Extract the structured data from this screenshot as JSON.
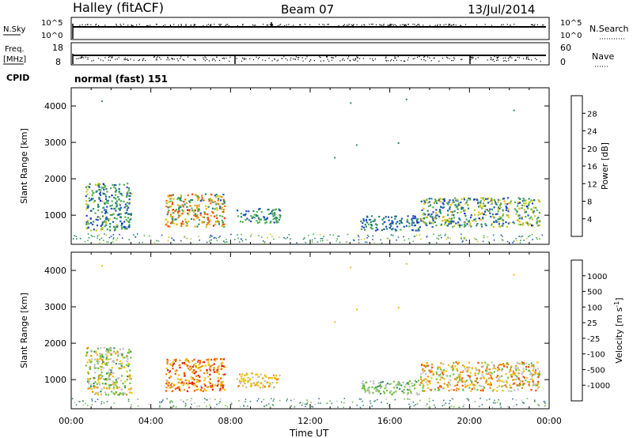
{
  "header": {
    "station": "Halley (fitACF)",
    "beam": "Beam 07",
    "date": "13/Jul/2014"
  },
  "strips": {
    "nsky_label": "N.Sky",
    "nsky_ticks": [
      "10^5",
      "10^0"
    ],
    "nsearch_label": "N.Search",
    "nsearch_ticks": [
      "10^5",
      "10^0"
    ],
    "freq_label_1": "Freq.",
    "freq_label_2": "[MHz]",
    "freq_ticks": [
      "18",
      "8"
    ],
    "nave_label": "Nave",
    "nave_ticks": [
      "60",
      "0"
    ],
    "cpid_label": "CPID",
    "cpid_value": "normal (fast) 151"
  },
  "chart_data": [
    {
      "type": "heatmap",
      "title": "",
      "xlabel": "",
      "ylabel": "Slant Range [km]",
      "x_ticks": [
        "00:00",
        "04:00",
        "08:00",
        "12:00",
        "16:00",
        "20:00",
        "00:00"
      ],
      "xlim_hours": [
        0,
        24
      ],
      "ylim_km": [
        200,
        4500
      ],
      "y_ticks": [
        "1000",
        "2000",
        "3000",
        "4000"
      ],
      "y_tick_values": [
        1000,
        2000,
        3000,
        4000
      ],
      "colorbar": {
        "label": "Power [dB]",
        "ticks": [
          "4",
          "8",
          "12",
          "16",
          "20",
          "24",
          "28"
        ],
        "colors": [
          "#1010e0",
          "#2050c0",
          "#2a8a6a",
          "#50b050",
          "#c8c820",
          "#f0b000",
          "#f07000",
          "#f04000",
          "#e01010"
        ]
      },
      "regions": [
        {
          "t": [
            0.7,
            3.0
          ],
          "r": [
            600,
            1900
          ],
          "level": [
            0.1,
            0.5
          ]
        },
        {
          "t": [
            4.7,
            7.7
          ],
          "r": [
            700,
            1600
          ],
          "level": [
            0.2,
            0.9
          ]
        },
        {
          "t": [
            8.3,
            10.5
          ],
          "r": [
            800,
            1200
          ],
          "level": [
            0.1,
            0.45
          ]
        },
        {
          "t": [
            14.5,
            17.5
          ],
          "r": [
            600,
            1000
          ],
          "level": [
            0.1,
            0.35
          ]
        },
        {
          "t": [
            17.5,
            23.5
          ],
          "r": [
            700,
            1500
          ],
          "level": [
            0.1,
            0.6
          ]
        }
      ]
    },
    {
      "type": "heatmap",
      "title": "",
      "xlabel": "Time UT",
      "ylabel": "Slant Range [km]",
      "x_ticks": [
        "00:00",
        "04:00",
        "08:00",
        "12:00",
        "16:00",
        "20:00",
        "00:00"
      ],
      "xlim_hours": [
        0,
        24
      ],
      "ylim_km": [
        200,
        4500
      ],
      "y_ticks": [
        "1000",
        "2000",
        "3000",
        "4000"
      ],
      "y_tick_values": [
        1000,
        2000,
        3000,
        4000
      ],
      "colorbar": {
        "label": "Velocity [m s^-1]",
        "ticks": [
          "1000",
          "500",
          "100",
          "25",
          "-25",
          "-100",
          "-500",
          "-1000"
        ],
        "colors": [
          "#2040c0",
          "#3070a0",
          "#3a9060",
          "#70c040",
          "#c0c0c0",
          "#f0c000",
          "#f09000",
          "#f05000",
          "#e01010"
        ]
      },
      "regions": [
        {
          "t": [
            0.7,
            3.0
          ],
          "r": [
            600,
            1900
          ],
          "level": [
            0.3,
            0.7
          ]
        },
        {
          "t": [
            4.7,
            7.7
          ],
          "r": [
            700,
            1600
          ],
          "level": [
            0.55,
            0.95
          ]
        },
        {
          "t": [
            8.3,
            10.5
          ],
          "r": [
            800,
            1200
          ],
          "level": [
            0.5,
            0.75
          ]
        },
        {
          "t": [
            14.5,
            17.5
          ],
          "r": [
            600,
            1000
          ],
          "level": [
            0.3,
            0.55
          ]
        },
        {
          "t": [
            17.5,
            23.5
          ],
          "r": [
            700,
            1500
          ],
          "level": [
            0.35,
            0.85
          ]
        }
      ]
    }
  ]
}
